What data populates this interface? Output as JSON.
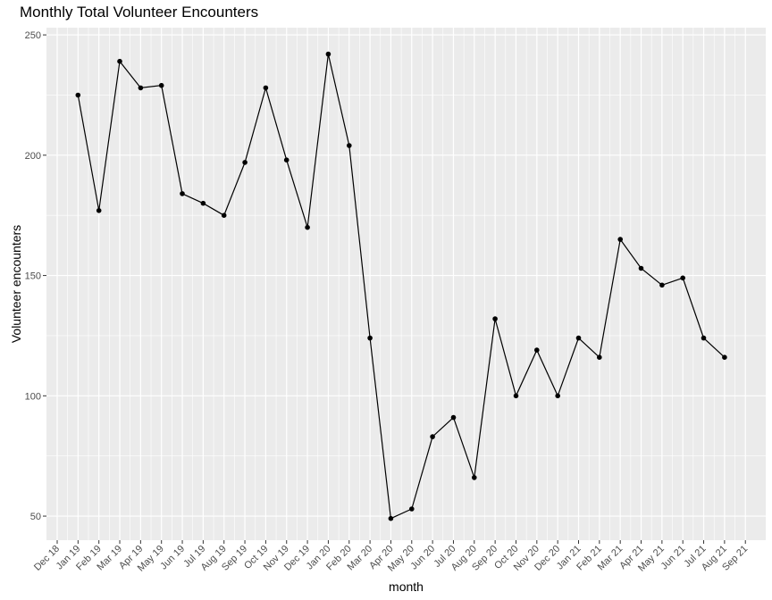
{
  "chart_data": {
    "type": "line",
    "title": "Monthly Total Volunteer Encounters",
    "xlabel": "month",
    "ylabel": "Volunteer encounters",
    "x_tick_labels": [
      "Dec 18",
      "Jan 19",
      "Feb 19",
      "Mar 19",
      "Apr 19",
      "May 19",
      "Jun 19",
      "Jul 19",
      "Aug 19",
      "Sep 19",
      "Oct 19",
      "Nov 19",
      "Dec 19",
      "Jan 20",
      "Feb 20",
      "Mar 20",
      "Apr 20",
      "May 20",
      "Jun 20",
      "Jul 20",
      "Aug 20",
      "Sep 20",
      "Oct 20",
      "Nov 20",
      "Dec 20",
      "Jan 21",
      "Feb 21",
      "Mar 21",
      "Apr 21",
      "May 21",
      "Jun 21",
      "Jul 21",
      "Aug 21",
      "Sep 21"
    ],
    "y_ticks": [
      50,
      100,
      150,
      200,
      250
    ],
    "ylim": [
      40,
      253
    ],
    "x": [
      "Jan 19",
      "Feb 19",
      "Mar 19",
      "Apr 19",
      "May 19",
      "Jun 19",
      "Jul 19",
      "Aug 19",
      "Sep 19",
      "Oct 19",
      "Nov 19",
      "Dec 19",
      "Jan 20",
      "Feb 20",
      "Mar 20",
      "Apr 20",
      "May 20",
      "Jun 20",
      "Jul 20",
      "Aug 20",
      "Sep 20",
      "Oct 20",
      "Nov 20",
      "Dec 20",
      "Jan 21",
      "Feb 21",
      "Mar 21",
      "Apr 21",
      "May 21",
      "Jun 21",
      "Jul 21",
      "Aug 21"
    ],
    "values": [
      225,
      177,
      239,
      228,
      229,
      184,
      180,
      175,
      197,
      228,
      198,
      170,
      242,
      204,
      124,
      49,
      53,
      83,
      91,
      66,
      132,
      100,
      119,
      100,
      124,
      116,
      165,
      153,
      146,
      149,
      124,
      116
    ],
    "grid": true,
    "colors": {
      "panel": "#ebebeb",
      "grid": "#ffffff",
      "line": "#000000"
    }
  }
}
